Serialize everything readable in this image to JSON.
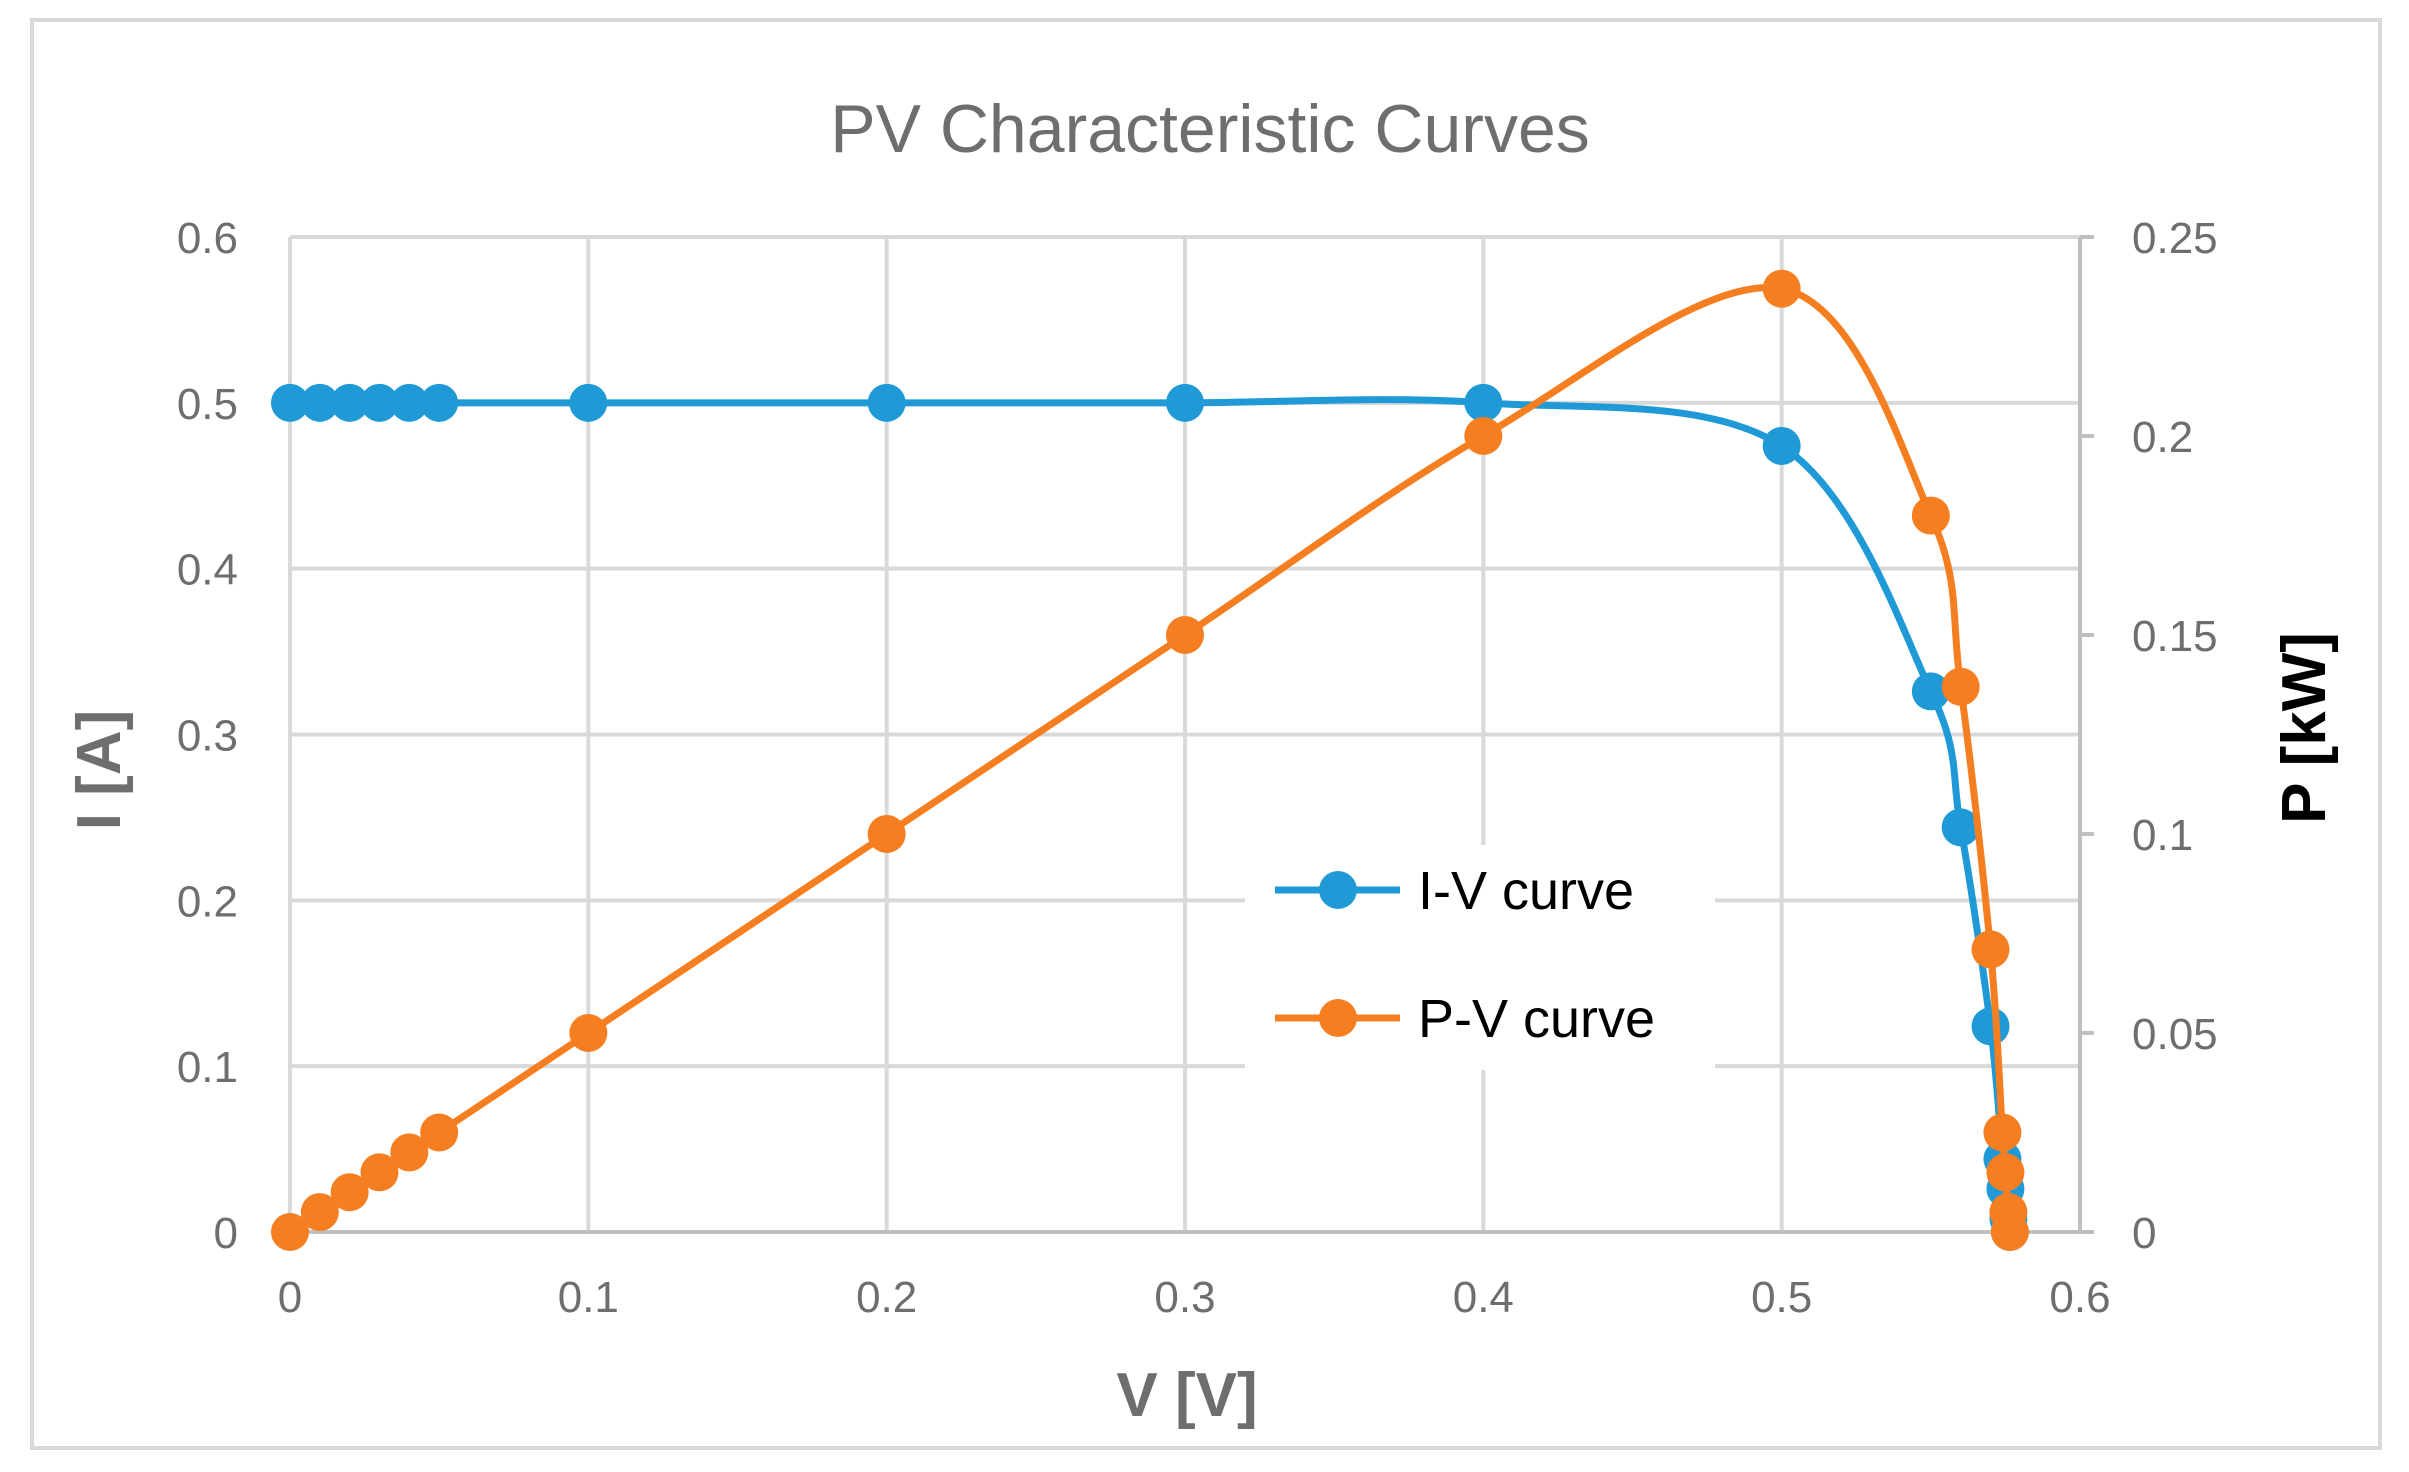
{
  "chart_data": {
    "type": "line",
    "title": "PV Characteristic Curves",
    "xlabel": "V [V]",
    "ylabel_left": "I [A]",
    "ylabel_right": "P [kW]",
    "xlim": [
      0,
      0.6
    ],
    "ylim_left": [
      0,
      0.6
    ],
    "ylim_right": [
      0,
      0.25
    ],
    "x_ticks": [
      "0",
      "0.1",
      "0.2",
      "0.3",
      "0.4",
      "0.5",
      "0.6"
    ],
    "y_left_ticks": [
      "0",
      "0.1",
      "0.2",
      "0.3",
      "0.4",
      "0.5",
      "0.6"
    ],
    "y_right_ticks": [
      "0",
      "0.05",
      "0.1",
      "0.15",
      "0.2",
      "0.25"
    ],
    "grid": true,
    "legend_position": "center-right",
    "series": [
      {
        "name": "I-V curve",
        "axis": "left",
        "color": "#1f9ad6",
        "x": [
          0,
          0.01,
          0.02,
          0.03,
          0.04,
          0.05,
          0.1,
          0.2,
          0.3,
          0.4,
          0.5,
          0.55,
          0.56,
          0.57,
          0.574,
          0.575,
          0.576,
          0.5765
        ],
        "y": [
          0.5,
          0.5,
          0.5,
          0.5,
          0.5,
          0.5,
          0.5,
          0.5,
          0.5,
          0.5,
          0.474,
          0.326,
          0.244,
          0.124,
          0.044,
          0.026,
          0.008,
          0.0
        ]
      },
      {
        "name": "P-V curve",
        "axis": "right",
        "color": "#f57e20",
        "x": [
          0,
          0.01,
          0.02,
          0.03,
          0.04,
          0.05,
          0.1,
          0.2,
          0.3,
          0.4,
          0.5,
          0.55,
          0.56,
          0.57,
          0.574,
          0.575,
          0.576,
          0.5765
        ],
        "y": [
          0,
          0.005,
          0.01,
          0.015,
          0.02,
          0.025,
          0.05,
          0.1,
          0.15,
          0.2,
          0.237,
          0.18,
          0.137,
          0.071,
          0.025,
          0.015,
          0.005,
          0.0
        ]
      }
    ]
  }
}
